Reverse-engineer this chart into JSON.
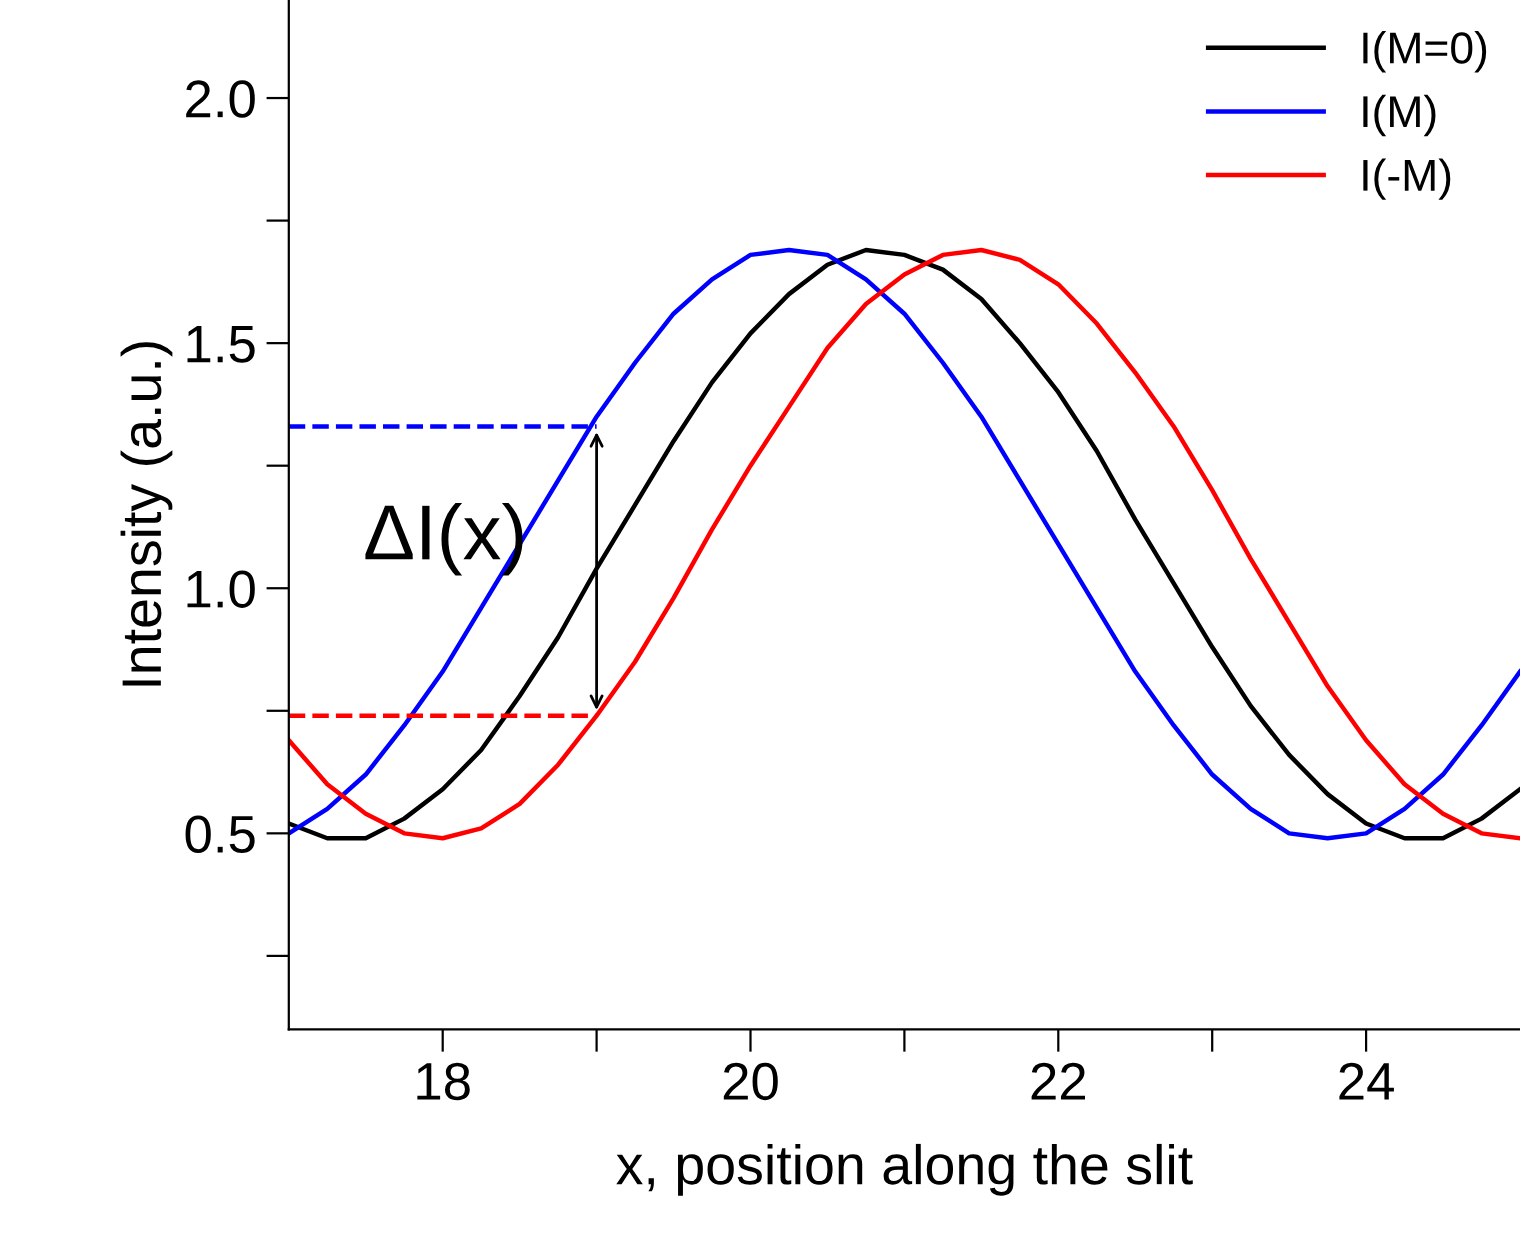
{
  "chart_data": {
    "type": "line",
    "xlabel": "x, position along the slit",
    "ylabel": "Intensity (a.u.)",
    "x": [
      17,
      17.25,
      17.5,
      17.75,
      18,
      18.25,
      18.5,
      18.75,
      19,
      19.25,
      19.5,
      19.75,
      20,
      20.25,
      20.5,
      20.75,
      21,
      21.25,
      21.5,
      21.75,
      22,
      22.25,
      22.5,
      22.75,
      23,
      23.25,
      23.5,
      23.75,
      24,
      24.25,
      24.5,
      24.75,
      25
    ],
    "series": [
      {
        "name": "I(M=0)",
        "color": "#000000",
        "values": [
          0.52,
          0.49,
          0.49,
          0.53,
          0.59,
          0.67,
          0.78,
          0.9,
          1.04,
          1.17,
          1.3,
          1.42,
          1.52,
          1.6,
          1.66,
          1.69,
          1.68,
          1.65,
          1.59,
          1.5,
          1.4,
          1.28,
          1.14,
          1.01,
          0.88,
          0.76,
          0.66,
          0.58,
          0.52,
          0.49,
          0.49,
          0.53,
          0.59
        ]
      },
      {
        "name": "I(M)",
        "color": "#0000ff",
        "values": [
          0.5,
          0.55,
          0.62,
          0.72,
          0.83,
          0.96,
          1.09,
          1.22,
          1.35,
          1.46,
          1.56,
          1.63,
          1.68,
          1.69,
          1.68,
          1.63,
          1.56,
          1.46,
          1.35,
          1.22,
          1.09,
          0.96,
          0.83,
          0.72,
          0.62,
          0.55,
          0.5,
          0.49,
          0.5,
          0.55,
          0.62,
          0.72,
          0.83
        ]
      },
      {
        "name": "I(-M)",
        "color": "#ff0000",
        "values": [
          0.69,
          0.6,
          0.54,
          0.5,
          0.49,
          0.51,
          0.56,
          0.64,
          0.74,
          0.85,
          0.98,
          1.12,
          1.25,
          1.37,
          1.49,
          1.58,
          1.64,
          1.68,
          1.69,
          1.67,
          1.62,
          1.54,
          1.44,
          1.33,
          1.2,
          1.06,
          0.93,
          0.8,
          0.69,
          0.6,
          0.54,
          0.5,
          0.49
        ]
      },
      {
        "color": "#0000ff",
        "line_style": "dashed",
        "values": [
          1.33,
          1.33,
          1.33,
          1.33,
          1.33,
          1.33,
          1.33,
          1.33,
          1.33,
          null,
          null,
          null,
          null,
          null,
          null,
          null,
          null,
          null,
          null,
          null,
          null,
          null,
          null,
          null,
          null,
          null,
          null,
          null,
          null,
          null,
          null,
          null,
          null
        ]
      },
      {
        "color": "#ff0000",
        "line_style": "dashed",
        "values": [
          0.74,
          0.74,
          0.74,
          0.74,
          0.74,
          0.74,
          0.74,
          0.74,
          0.74,
          null,
          null,
          null,
          null,
          null,
          null,
          null,
          null,
          null,
          null,
          null,
          null,
          null,
          null,
          null,
          null,
          null,
          null,
          null,
          null,
          null,
          null,
          null,
          null
        ]
      }
    ],
    "annotations": [
      {
        "text": "ΔI(x)",
        "x": 19,
        "y": 1.03
      }
    ],
    "xlim": [
      17,
      25
    ],
    "xticks": [
      18,
      {
        "value": 19,
        "label": null
      },
      20,
      {
        "value": 21,
        "label": null
      },
      22,
      {
        "value": 23,
        "label": null
      },
      24
    ],
    "ylim": [
      0.1,
      2.2
    ],
    "yticks": [
      {
        "value": 0.25,
        "label": null
      },
      0.5,
      {
        "value": 0.75,
        "label": null
      },
      {
        "value": 1.0,
        "label": "1.0"
      },
      {
        "value": 1.25,
        "label": null
      },
      1.5,
      {
        "value": 1.75,
        "label": null
      },
      {
        "value": 2.0,
        "label": "2.0"
      }
    ],
    "legend": "top right",
    "grid": false,
    "marker": "none",
    "line_style": "solid"
  }
}
